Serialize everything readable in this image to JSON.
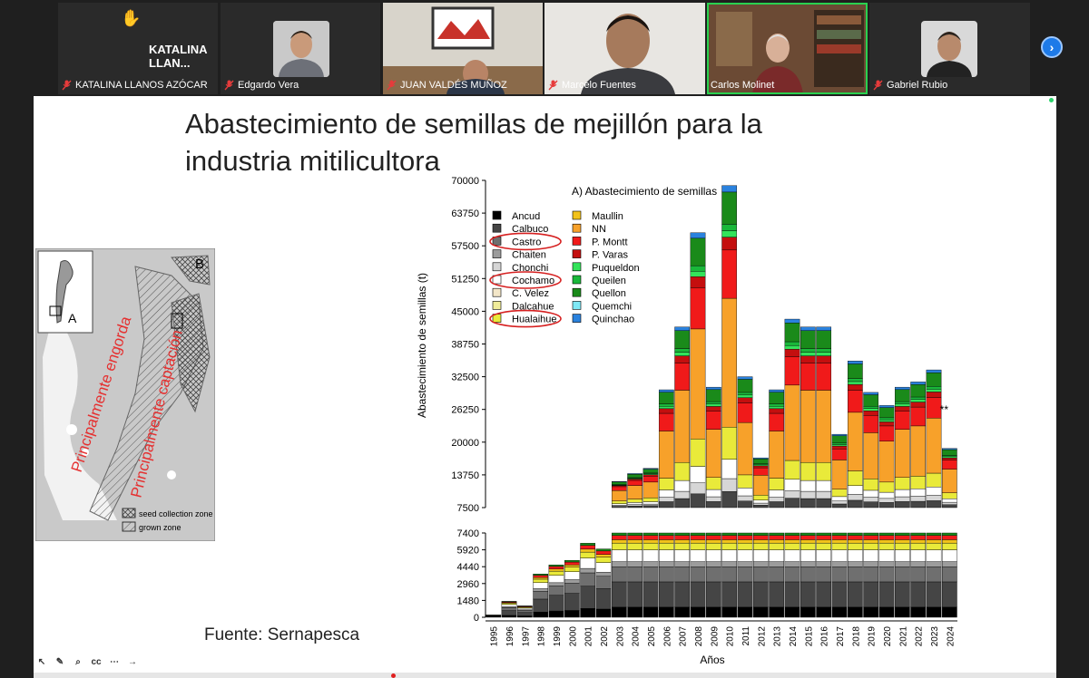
{
  "meeting": {
    "participants": [
      {
        "name": "KATALINA LLANOS AZÓCAR",
        "tile_label": "KATALINA LLAN...",
        "raised_hand": true,
        "muted": true
      },
      {
        "name": "Edgardo Vera",
        "muted": true
      },
      {
        "name": "JUAN VALDÉS MUÑOZ",
        "muted": true
      },
      {
        "name": "Marcelo Fuentes",
        "muted": true
      },
      {
        "name": "Carlos Molinet",
        "muted": false,
        "speaking": true
      },
      {
        "name": "Gabriel Rubio",
        "muted": true
      }
    ],
    "next_page_icon": "chevron-right-icon"
  },
  "slide": {
    "title": "Abastecimiento de semillas de mejillón para la industria mitilicultora",
    "source": "Fuente: Sernapesca",
    "map": {
      "panel_label": "B",
      "inset_label": "A",
      "annotation_1": "Principalmente engorda",
      "annotation_2": "Principalmente captación",
      "legend": [
        "seed collection zone",
        "grown zone"
      ]
    }
  },
  "chart_data": {
    "type": "bar",
    "stacked": true,
    "broken_axis": true,
    "title": "A) Abastecimiento de semillas",
    "xlabel": "Años",
    "ylabel": "Abastecimiento de semillas (t)",
    "upper_ylim": [
      7500,
      70000
    ],
    "upper_ticks": [
      "70000",
      "63750",
      "57500",
      "51250",
      "45000",
      "38750",
      "32500",
      "26250",
      "20000",
      "13750",
      "7500"
    ],
    "lower_ylim": [
      0,
      7400
    ],
    "lower_ticks": [
      "7400",
      "5920",
      "4440",
      "2960",
      "1480",
      "0"
    ],
    "annotation": "**",
    "categories": [
      "1995",
      "1996",
      "1997",
      "1998",
      "1999",
      "2000",
      "2001",
      "2002",
      "2003",
      "2004",
      "2005",
      "2006",
      "2007",
      "2008",
      "2009",
      "2010",
      "2011",
      "2012",
      "2013",
      "2014",
      "2015",
      "2016",
      "2017",
      "2018",
      "2019",
      "2020",
      "2021",
      "2022",
      "2023",
      "2024"
    ],
    "totals": [
      200,
      1400,
      1000,
      3800,
      4600,
      5000,
      6500,
      6000,
      12500,
      14000,
      15000,
      30000,
      42000,
      60000,
      30500,
      69000,
      32500,
      17000,
      30000,
      43500,
      42000,
      42000,
      21500,
      35500,
      29500,
      27000,
      30500,
      31500,
      33800,
      18800
    ],
    "legend": [
      "Ancud",
      "Calbuco",
      "Castro",
      "Chaiten",
      "Chonchi",
      "Cochamo",
      "C. Velez",
      "Dalcahue",
      "Hualaihue",
      "Maullin",
      "NN",
      "P. Montt",
      "P. Varas",
      "Puqueldon",
      "Queilen",
      "Quellon",
      "Quemchi",
      "Quinchao"
    ],
    "highlighted_legend": [
      "Castro",
      "Cochamo",
      "Hualaihue"
    ],
    "colors": {
      "Ancud": "#000000",
      "Calbuco": "#454545",
      "Castro": "#6f6f6f",
      "Chaiten": "#9c9c9c",
      "Chonchi": "#d6d6d6",
      "Cochamo": "#ffffff",
      "C. Velez": "#f3e6c8",
      "Dalcahue": "#f0ec9a",
      "Hualaihue": "#e9ea3a",
      "Maullin": "#f2c21b",
      "NN": "#f7a12a",
      "P. Montt": "#f01a1a",
      "P. Varas": "#c40f0f",
      "Puqueldon": "#33e35a",
      "Queilen": "#19b83a",
      "Quellon": "#1a8a1a",
      "Quemchi": "#7ee8f5",
      "Quinchao": "#2a82de"
    }
  }
}
